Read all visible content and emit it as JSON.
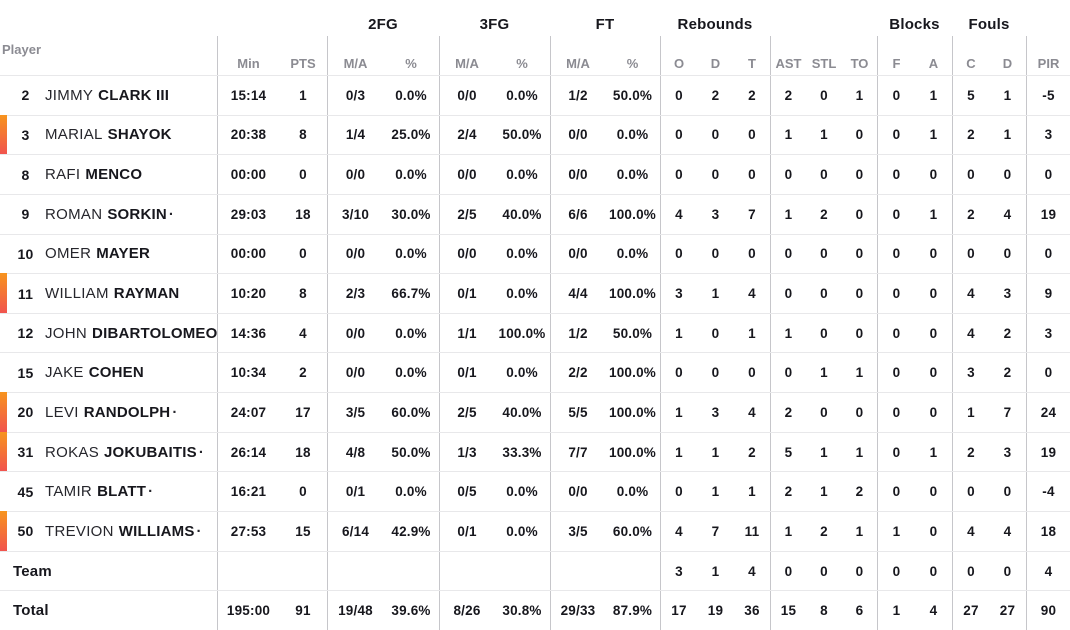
{
  "colors": {
    "oncourt_gradient_top": "#f7941e",
    "oncourt_gradient_bottom": "#f1544e"
  },
  "table": {
    "starter_indicator": "·",
    "groups": {
      "fg2": "2FG",
      "fg3": "3FG",
      "ft": "FT",
      "rebounds": "Rebounds",
      "blocks": "Blocks",
      "fouls": "Fouls"
    },
    "columns": {
      "player": "Player",
      "min": "Min",
      "pts": "PTS",
      "ma": "M/A",
      "pct": "%",
      "reb_o": "O",
      "reb_d": "D",
      "reb_t": "T",
      "ast": "AST",
      "stl": "STL",
      "to": "TO",
      "blk_f": "F",
      "blk_a": "A",
      "foul_c": "C",
      "foul_d": "D",
      "pir": "PIR"
    }
  },
  "players": [
    {
      "number": "2",
      "first": "JIMMY",
      "last": "CLARK III",
      "starter": false,
      "oncourt": false,
      "min": "15:14",
      "pts": "1",
      "fg2": "0/3",
      "fg2pct": "0.0%",
      "fg3": "0/0",
      "fg3pct": "0.0%",
      "ft": "1/2",
      "ftpct": "50.0%",
      "o": "0",
      "d": "2",
      "t": "2",
      "ast": "2",
      "stl": "0",
      "to": "1",
      "bf": "0",
      "ba": "1",
      "fc": "5",
      "fd": "1",
      "pir": "-5"
    },
    {
      "number": "3",
      "first": "MARIAL",
      "last": "SHAYOK",
      "starter": false,
      "oncourt": true,
      "min": "20:38",
      "pts": "8",
      "fg2": "1/4",
      "fg2pct": "25.0%",
      "fg3": "2/4",
      "fg3pct": "50.0%",
      "ft": "0/0",
      "ftpct": "0.0%",
      "o": "0",
      "d": "0",
      "t": "0",
      "ast": "1",
      "stl": "1",
      "to": "0",
      "bf": "0",
      "ba": "1",
      "fc": "2",
      "fd": "1",
      "pir": "3"
    },
    {
      "number": "8",
      "first": "RAFI",
      "last": "MENCO",
      "starter": false,
      "oncourt": false,
      "min": "00:00",
      "pts": "0",
      "fg2": "0/0",
      "fg2pct": "0.0%",
      "fg3": "0/0",
      "fg3pct": "0.0%",
      "ft": "0/0",
      "ftpct": "0.0%",
      "o": "0",
      "d": "0",
      "t": "0",
      "ast": "0",
      "stl": "0",
      "to": "0",
      "bf": "0",
      "ba": "0",
      "fc": "0",
      "fd": "0",
      "pir": "0"
    },
    {
      "number": "9",
      "first": "ROMAN",
      "last": "SORKIN",
      "starter": true,
      "oncourt": false,
      "min": "29:03",
      "pts": "18",
      "fg2": "3/10",
      "fg2pct": "30.0%",
      "fg3": "2/5",
      "fg3pct": "40.0%",
      "ft": "6/6",
      "ftpct": "100.0%",
      "o": "4",
      "d": "3",
      "t": "7",
      "ast": "1",
      "stl": "2",
      "to": "0",
      "bf": "0",
      "ba": "1",
      "fc": "2",
      "fd": "4",
      "pir": "19"
    },
    {
      "number": "10",
      "first": "OMER",
      "last": "MAYER",
      "starter": false,
      "oncourt": false,
      "min": "00:00",
      "pts": "0",
      "fg2": "0/0",
      "fg2pct": "0.0%",
      "fg3": "0/0",
      "fg3pct": "0.0%",
      "ft": "0/0",
      "ftpct": "0.0%",
      "o": "0",
      "d": "0",
      "t": "0",
      "ast": "0",
      "stl": "0",
      "to": "0",
      "bf": "0",
      "ba": "0",
      "fc": "0",
      "fd": "0",
      "pir": "0"
    },
    {
      "number": "11",
      "first": "WILLIAM",
      "last": "RAYMAN",
      "starter": false,
      "oncourt": true,
      "min": "10:20",
      "pts": "8",
      "fg2": "2/3",
      "fg2pct": "66.7%",
      "fg3": "0/1",
      "fg3pct": "0.0%",
      "ft": "4/4",
      "ftpct": "100.0%",
      "o": "3",
      "d": "1",
      "t": "4",
      "ast": "0",
      "stl": "0",
      "to": "0",
      "bf": "0",
      "ba": "0",
      "fc": "4",
      "fd": "3",
      "pir": "9"
    },
    {
      "number": "12",
      "first": "JOHN",
      "last": "DIBARTOLOMEO",
      "starter": false,
      "oncourt": false,
      "min": "14:36",
      "pts": "4",
      "fg2": "0/0",
      "fg2pct": "0.0%",
      "fg3": "1/1",
      "fg3pct": "100.0%",
      "ft": "1/2",
      "ftpct": "50.0%",
      "o": "1",
      "d": "0",
      "t": "1",
      "ast": "1",
      "stl": "0",
      "to": "0",
      "bf": "0",
      "ba": "0",
      "fc": "4",
      "fd": "2",
      "pir": "3"
    },
    {
      "number": "15",
      "first": "JAKE",
      "last": "COHEN",
      "starter": false,
      "oncourt": false,
      "min": "10:34",
      "pts": "2",
      "fg2": "0/0",
      "fg2pct": "0.0%",
      "fg3": "0/1",
      "fg3pct": "0.0%",
      "ft": "2/2",
      "ftpct": "100.0%",
      "o": "0",
      "d": "0",
      "t": "0",
      "ast": "0",
      "stl": "1",
      "to": "1",
      "bf": "0",
      "ba": "0",
      "fc": "3",
      "fd": "2",
      "pir": "0"
    },
    {
      "number": "20",
      "first": "LEVI",
      "last": "RANDOLPH",
      "starter": true,
      "oncourt": true,
      "min": "24:07",
      "pts": "17",
      "fg2": "3/5",
      "fg2pct": "60.0%",
      "fg3": "2/5",
      "fg3pct": "40.0%",
      "ft": "5/5",
      "ftpct": "100.0%",
      "o": "1",
      "d": "3",
      "t": "4",
      "ast": "2",
      "stl": "0",
      "to": "0",
      "bf": "0",
      "ba": "0",
      "fc": "1",
      "fd": "7",
      "pir": "24"
    },
    {
      "number": "31",
      "first": "ROKAS",
      "last": "JOKUBAITIS",
      "starter": true,
      "oncourt": true,
      "min": "26:14",
      "pts": "18",
      "fg2": "4/8",
      "fg2pct": "50.0%",
      "fg3": "1/3",
      "fg3pct": "33.3%",
      "ft": "7/7",
      "ftpct": "100.0%",
      "o": "1",
      "d": "1",
      "t": "2",
      "ast": "5",
      "stl": "1",
      "to": "1",
      "bf": "0",
      "ba": "1",
      "fc": "2",
      "fd": "3",
      "pir": "19"
    },
    {
      "number": "45",
      "first": "TAMIR",
      "last": "BLATT",
      "starter": true,
      "oncourt": false,
      "min": "16:21",
      "pts": "0",
      "fg2": "0/1",
      "fg2pct": "0.0%",
      "fg3": "0/5",
      "fg3pct": "0.0%",
      "ft": "0/0",
      "ftpct": "0.0%",
      "o": "0",
      "d": "1",
      "t": "1",
      "ast": "2",
      "stl": "1",
      "to": "2",
      "bf": "0",
      "ba": "0",
      "fc": "0",
      "fd": "0",
      "pir": "-4"
    },
    {
      "number": "50",
      "first": "TREVION",
      "last": "WILLIAMS",
      "starter": true,
      "oncourt": true,
      "min": "27:53",
      "pts": "15",
      "fg2": "6/14",
      "fg2pct": "42.9%",
      "fg3": "0/1",
      "fg3pct": "0.0%",
      "ft": "3/5",
      "ftpct": "60.0%",
      "o": "4",
      "d": "7",
      "t": "11",
      "ast": "1",
      "stl": "2",
      "to": "1",
      "bf": "1",
      "ba": "0",
      "fc": "4",
      "fd": "4",
      "pir": "18"
    }
  ],
  "team_row": {
    "label": "Team",
    "min": "",
    "pts": "",
    "fg2": "",
    "fg2pct": "",
    "fg3": "",
    "fg3pct": "",
    "ft": "",
    "ftpct": "",
    "o": "3",
    "d": "1",
    "t": "4",
    "ast": "0",
    "stl": "0",
    "to": "0",
    "bf": "0",
    "ba": "0",
    "fc": "0",
    "fd": "0",
    "pir": "4"
  },
  "total_row": {
    "label": "Total",
    "min": "195:00",
    "pts": "91",
    "fg2": "19/48",
    "fg2pct": "39.6%",
    "fg3": "8/26",
    "fg3pct": "30.8%",
    "ft": "29/33",
    "ftpct": "87.9%",
    "o": "17",
    "d": "19",
    "t": "36",
    "ast": "15",
    "stl": "8",
    "to": "6",
    "bf": "1",
    "ba": "4",
    "fc": "27",
    "fd": "27",
    "pir": "90"
  }
}
